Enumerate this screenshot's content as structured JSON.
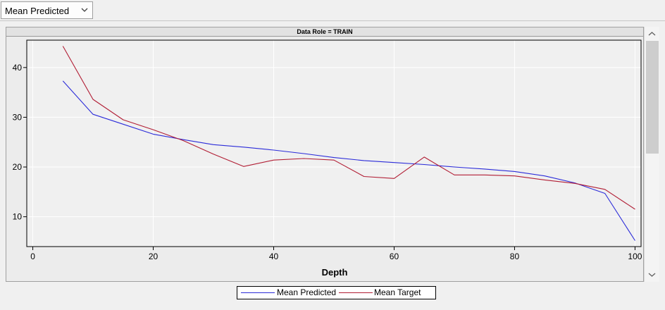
{
  "toolbar": {
    "view_select": {
      "value": "Mean Predicted"
    }
  },
  "chart_panel": {
    "header": "Data Role = TRAIN"
  },
  "colors": {
    "background": "#f0f0f0",
    "panel": "#ececec",
    "plot_background": "#f0f0f0",
    "grid": "#ffffff",
    "predicted": "#2b2bd9",
    "target": "#b11d34",
    "axis": "#000000"
  },
  "chart_data": {
    "type": "line",
    "xlabel": "Depth",
    "ylabel": "",
    "xlim": [
      -1,
      101
    ],
    "ylim": [
      4,
      45.5
    ],
    "xticks": [
      0,
      20,
      40,
      60,
      80,
      100
    ],
    "yticks": [
      10,
      20,
      30,
      40
    ],
    "grid": true,
    "legend_position": "bottom-center",
    "x": [
      5,
      10,
      15,
      20,
      25,
      30,
      35,
      40,
      45,
      50,
      55,
      60,
      65,
      70,
      75,
      80,
      85,
      90,
      95,
      100
    ],
    "series": [
      {
        "name": "Mean Predicted",
        "color": "#2b2bd9",
        "values": [
          37.3,
          30.6,
          28.6,
          26.6,
          25.5,
          24.5,
          24.0,
          23.4,
          22.7,
          21.9,
          21.3,
          20.9,
          20.5,
          20.0,
          19.6,
          19.1,
          18.2,
          16.8,
          14.7,
          5.2
        ]
      },
      {
        "name": "Mean Target",
        "color": "#b11d34",
        "values": [
          44.3,
          33.6,
          29.5,
          27.5,
          25.3,
          22.6,
          20.1,
          21.4,
          21.7,
          21.4,
          18.1,
          17.7,
          22.0,
          18.4,
          18.4,
          18.2,
          17.4,
          16.7,
          15.5,
          11.5
        ]
      }
    ]
  }
}
